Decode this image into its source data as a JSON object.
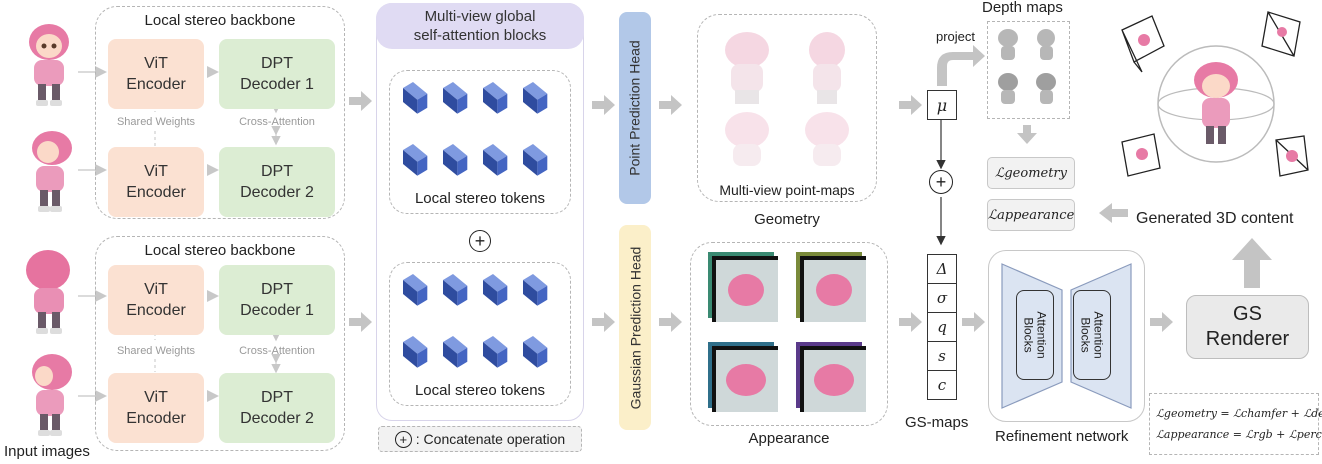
{
  "input_images_label": "Input images",
  "backbone_top": {
    "title": "Local stereo backbone",
    "vit1": [
      "ViT",
      "Encoder"
    ],
    "vit2": [
      "ViT",
      "Encoder"
    ],
    "dpt1": [
      "DPT",
      "Decoder 1"
    ],
    "dpt2": [
      "DPT",
      "Decoder 2"
    ],
    "shared_weights": "Shared Weights",
    "cross_attention": "Cross-Attention"
  },
  "backbone_bottom": {
    "title": "Local stereo backbone",
    "vit1": [
      "ViT",
      "Encoder"
    ],
    "vit2": [
      "ViT",
      "Encoder"
    ],
    "dpt1": [
      "DPT",
      "Decoder 1"
    ],
    "dpt2": [
      "DPT",
      "Decoder 2"
    ],
    "shared_weights": "Shared Weights",
    "cross_attention": "Cross-Attention"
  },
  "global_attention": {
    "title_line1": "Multi-view global",
    "title_line2": "self-attention blocks",
    "tokens_top": "Local stereo tokens",
    "tokens_bottom": "Local stereo tokens",
    "concat_symbol": "+",
    "concat_label": ": Concatenate operation"
  },
  "point_head": "Point Prediction Head",
  "gaussian_head": "Gaussian Prediction Head",
  "pointmaps_label": "Multi-view point-maps",
  "geometry_label": "Geometry",
  "appearance_label": "Appearance",
  "mu_symbol": "μ",
  "project_label": "project",
  "depth_maps_label": "Depth maps",
  "gsmaps": {
    "cells": [
      "Δ",
      "σ",
      "q",
      "s",
      "c"
    ],
    "label": "GS-maps"
  },
  "loss_geometry": "ℒgeometry",
  "loss_appearance": "ℒappearance",
  "generated_label": "Generated 3D content",
  "refinement": {
    "block1": [
      "Attention",
      "Blocks"
    ],
    "block2": [
      "Attention",
      "Blocks"
    ],
    "label": "Refinement network"
  },
  "renderer": [
    "GS",
    "Renderer"
  ],
  "formulas": {
    "geometry": "ℒgeometry = ℒchamfer + ℒdepth",
    "appearance": "ℒappearance = ℒrgb + ℒperceptual"
  },
  "colors": {
    "vit": "#fbe1d2",
    "dpt": "#dcedd3",
    "global_title_bg": "#e0dbf3",
    "point_head": "#b2c8e8",
    "gaussian_head": "#fbefc9",
    "cube": "#4465c2",
    "arrow": "#c4c4c4"
  }
}
